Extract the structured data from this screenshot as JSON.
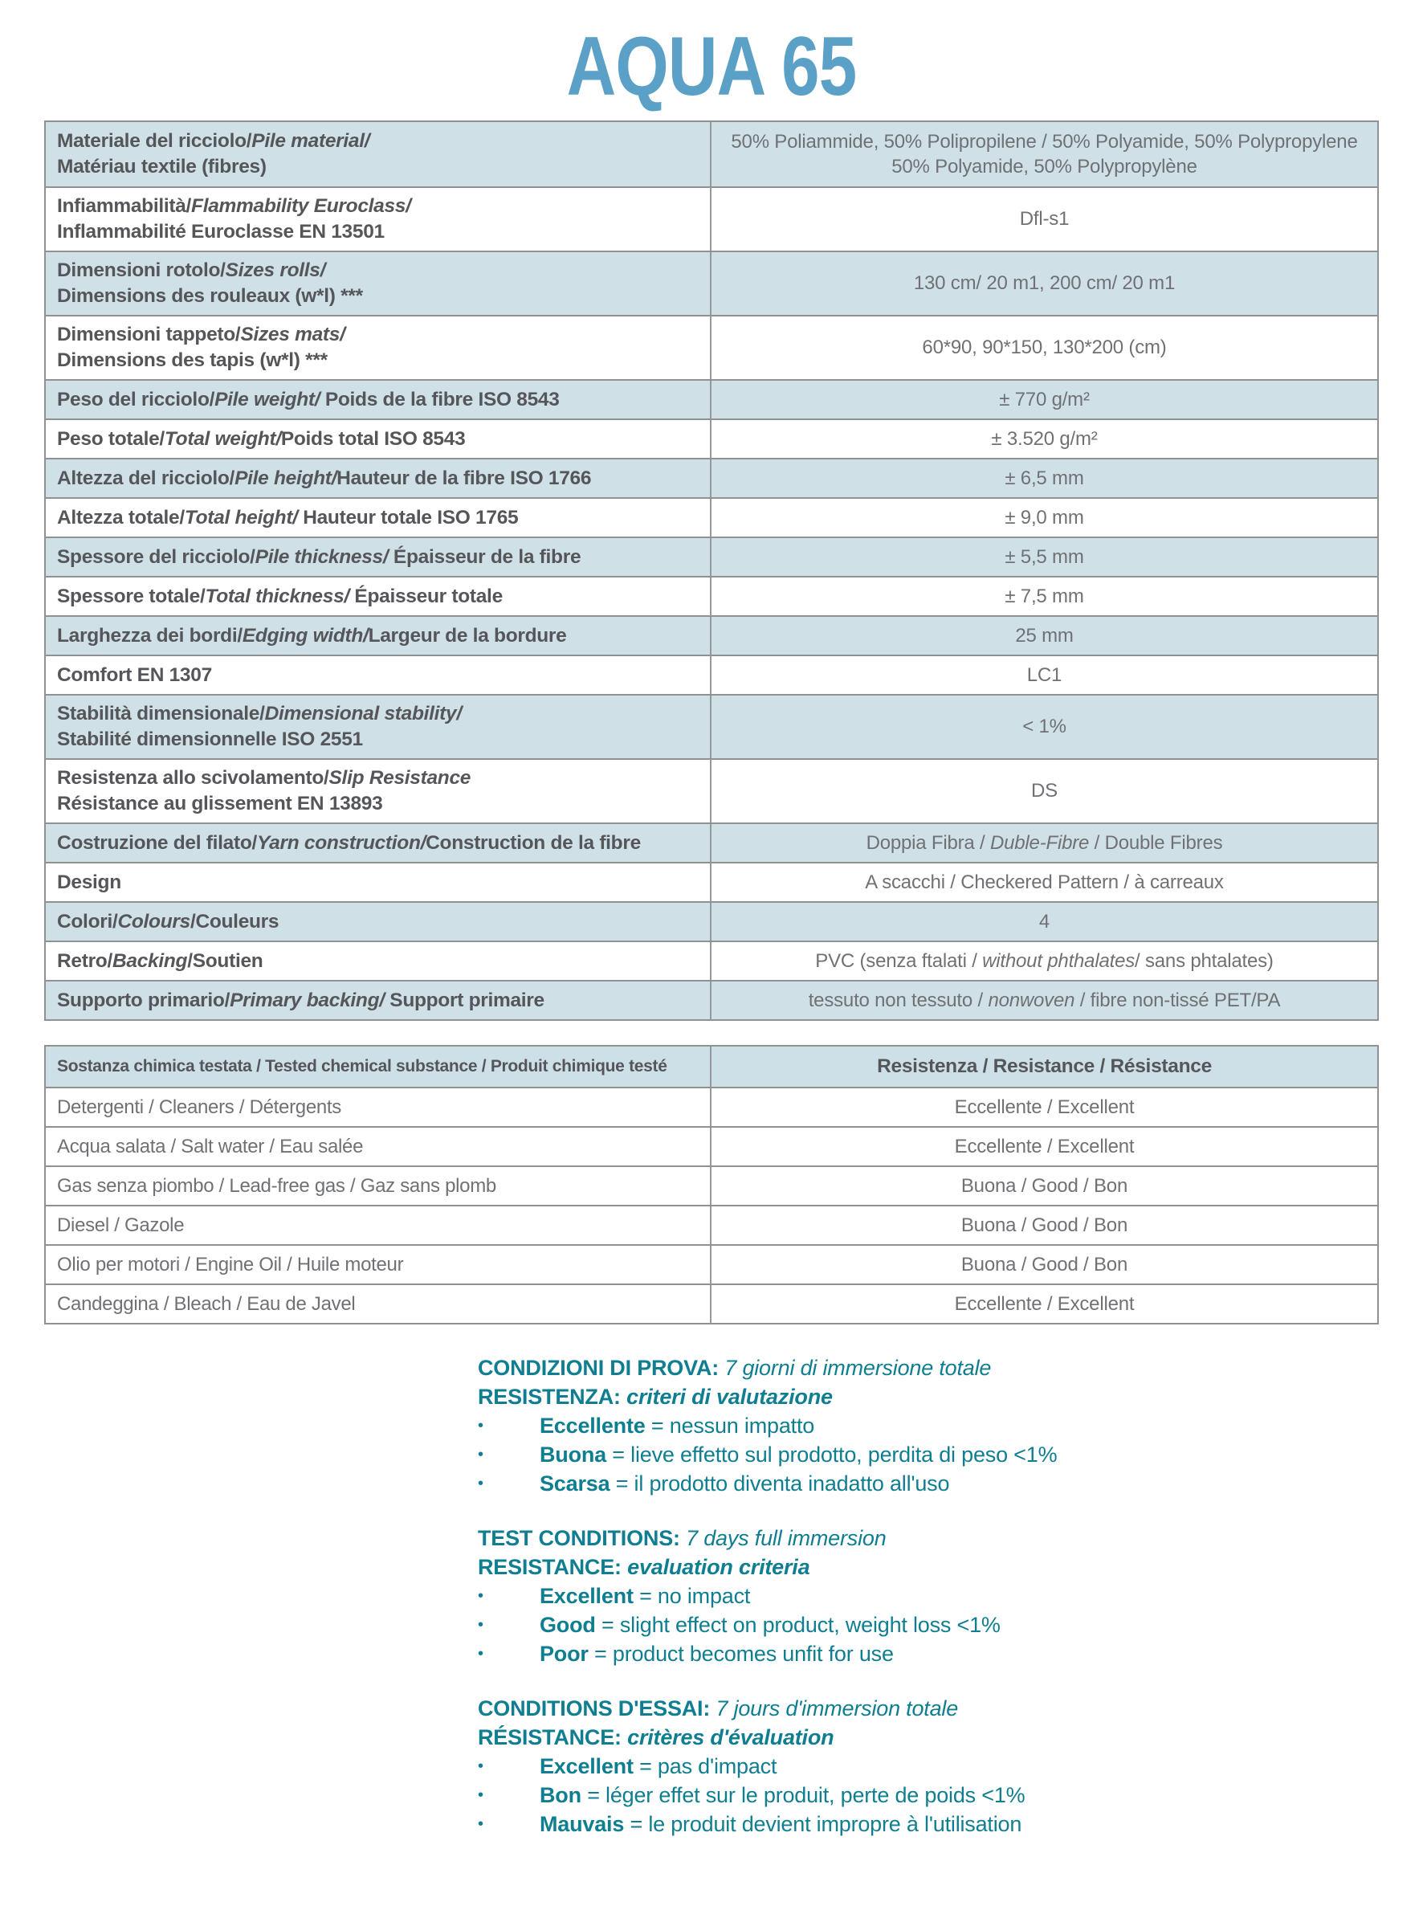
{
  "title": "AQUA 65",
  "colors": {
    "title_blue": "#5aa0c7",
    "row_blue": "#cfe0e7",
    "header_blue": "#cddfe7",
    "border_gray": "#8f9192",
    "label_gray": "#55565a",
    "value_gray": "#6f7174",
    "notes_teal": "#0f7e91"
  },
  "spec_table": {
    "rows": [
      {
        "label": [
          [
            {
              "t": "Materiale del ricciolo/",
              "s": "b"
            },
            {
              "t": "Pile material/",
              "s": "bi"
            }
          ],
          [
            {
              "t": "Matériau textile (fibres)",
              "s": "b"
            }
          ]
        ],
        "value": [
          [
            {
              "t": "50% Poliammide, 50% Polipropilene / 50% Polyamide, 50% Polypropylene",
              "s": ""
            }
          ],
          [
            {
              "t": "50% Polyamide, 50% Polypropylène",
              "s": ""
            }
          ]
        ]
      },
      {
        "label": [
          [
            {
              "t": "Infiammabilità/",
              "s": "b"
            },
            {
              "t": "Flammability Euroclass/",
              "s": "bi"
            }
          ],
          [
            {
              "t": "Inflammabilité Euroclasse EN 13501",
              "s": "b"
            }
          ]
        ],
        "value": [
          [
            {
              "t": "Dfl-s1",
              "s": ""
            }
          ]
        ]
      },
      {
        "label": [
          [
            {
              "t": "Dimensioni rotolo/",
              "s": "b"
            },
            {
              "t": "Sizes rolls/",
              "s": "bi"
            }
          ],
          [
            {
              "t": "Dimensions des rouleaux (w*l) ***",
              "s": "b"
            }
          ]
        ],
        "value": [
          [
            {
              "t": "130 cm/ 20 m1, 200 cm/ 20 m1",
              "s": ""
            }
          ]
        ]
      },
      {
        "label": [
          [
            {
              "t": "Dimensioni tappeto/",
              "s": "b"
            },
            {
              "t": "Sizes mats/",
              "s": "bi"
            }
          ],
          [
            {
              "t": "Dimensions des tapis (w*l) ***",
              "s": "b"
            }
          ]
        ],
        "value": [
          [
            {
              "t": "60*90, 90*150, 130*200 (cm)",
              "s": ""
            }
          ]
        ]
      },
      {
        "label": [
          [
            {
              "t": "Peso del ricciolo/",
              "s": "b"
            },
            {
              "t": "Pile weight/",
              "s": "bi"
            },
            {
              "t": " Poids de la fibre ISO 8543",
              "s": "b"
            }
          ]
        ],
        "value": [
          [
            {
              "t": "± 770 g/m²",
              "s": ""
            }
          ]
        ]
      },
      {
        "label": [
          [
            {
              "t": "Peso totale/",
              "s": "b"
            },
            {
              "t": "Total weight/",
              "s": "bi"
            },
            {
              "t": "Poids total ISO 8543",
              "s": "b"
            }
          ]
        ],
        "value": [
          [
            {
              "t": "± 3.520 g/m²",
              "s": ""
            }
          ]
        ]
      },
      {
        "label": [
          [
            {
              "t": "Altezza del ricciolo/",
              "s": "b"
            },
            {
              "t": "Pile height/",
              "s": "bi"
            },
            {
              "t": "Hauteur de la fibre ISO 1766",
              "s": "b"
            }
          ]
        ],
        "value": [
          [
            {
              "t": "± 6,5 mm",
              "s": ""
            }
          ]
        ]
      },
      {
        "label": [
          [
            {
              "t": "Altezza totale/",
              "s": "b"
            },
            {
              "t": "Total height/",
              "s": "bi"
            },
            {
              "t": " Hauteur totale ISO 1765",
              "s": "b"
            }
          ]
        ],
        "value": [
          [
            {
              "t": "± 9,0 mm",
              "s": ""
            }
          ]
        ]
      },
      {
        "label": [
          [
            {
              "t": "Spessore del ricciolo/",
              "s": "b"
            },
            {
              "t": "Pile thickness/",
              "s": "bi"
            },
            {
              "t": " Épaisseur de la fibre",
              "s": "b"
            }
          ]
        ],
        "value": [
          [
            {
              "t": "± 5,5 mm",
              "s": ""
            }
          ]
        ]
      },
      {
        "label": [
          [
            {
              "t": "Spessore totale/",
              "s": "b"
            },
            {
              "t": "Total thickness/",
              "s": "bi"
            },
            {
              "t": " Épaisseur totale",
              "s": "b"
            }
          ]
        ],
        "value": [
          [
            {
              "t": "± 7,5 mm",
              "s": ""
            }
          ]
        ]
      },
      {
        "label": [
          [
            {
              "t": "Larghezza dei bordi/",
              "s": "b"
            },
            {
              "t": "Edging width/",
              "s": "bi"
            },
            {
              "t": "Largeur de la bordure",
              "s": "b"
            }
          ]
        ],
        "value": [
          [
            {
              "t": "25 mm",
              "s": ""
            }
          ]
        ]
      },
      {
        "label": [
          [
            {
              "t": "Comfort EN 1307",
              "s": "b"
            }
          ]
        ],
        "value": [
          [
            {
              "t": "LC1",
              "s": ""
            }
          ]
        ]
      },
      {
        "label": [
          [
            {
              "t": "Stabilità dimensionale/",
              "s": "b"
            },
            {
              "t": "Dimensional stability/",
              "s": "bi"
            }
          ],
          [
            {
              "t": "Stabilité dimensionnelle ISO 2551",
              "s": "b"
            }
          ]
        ],
        "value": [
          [
            {
              "t": "< 1%",
              "s": ""
            }
          ]
        ]
      },
      {
        "label": [
          [
            {
              "t": "Resistenza allo scivolamento/",
              "s": "b"
            },
            {
              "t": "Slip Resistance",
              "s": "bi"
            }
          ],
          [
            {
              "t": "Résistance au glissement EN 13893",
              "s": "b"
            }
          ]
        ],
        "value": [
          [
            {
              "t": "DS",
              "s": ""
            }
          ]
        ]
      },
      {
        "label": [
          [
            {
              "t": "Costruzione del filato/",
              "s": "b"
            },
            {
              "t": "Yarn construction/",
              "s": "bi"
            },
            {
              "t": "Construction de la fibre",
              "s": "b"
            }
          ]
        ],
        "value": [
          [
            {
              "t": "Doppia Fibra / ",
              "s": ""
            },
            {
              "t": "Duble-Fibre",
              "s": "i"
            },
            {
              "t": " / Double Fibres",
              "s": ""
            }
          ]
        ]
      },
      {
        "label": [
          [
            {
              "t": "Design",
              "s": "b"
            }
          ]
        ],
        "value": [
          [
            {
              "t": "A scacchi / Checkered Pattern / à carreaux",
              "s": ""
            }
          ]
        ]
      },
      {
        "label": [
          [
            {
              "t": "Colori/",
              "s": "b"
            },
            {
              "t": "Colours",
              "s": "bi"
            },
            {
              "t": "/Couleurs",
              "s": "b"
            }
          ]
        ],
        "value": [
          [
            {
              "t": "4",
              "s": ""
            }
          ]
        ]
      },
      {
        "label": [
          [
            {
              "t": "Retro/",
              "s": "b"
            },
            {
              "t": "Backing",
              "s": "bi"
            },
            {
              "t": "/Soutien",
              "s": "b"
            }
          ]
        ],
        "value": [
          [
            {
              "t": "PVC (senza ftalati / ",
              "s": ""
            },
            {
              "t": "without phthalates",
              "s": "i"
            },
            {
              "t": "/ sans phtalates)",
              "s": ""
            }
          ]
        ]
      },
      {
        "label": [
          [
            {
              "t": "Supporto primario/",
              "s": "b"
            },
            {
              "t": "Primary backing/",
              "s": "bi"
            },
            {
              "t": " Support primaire",
              "s": "b"
            }
          ]
        ],
        "value": [
          [
            {
              "t": "tessuto non tessuto / ",
              "s": ""
            },
            {
              "t": "nonwoven",
              "s": "i"
            },
            {
              "t": " /  fibre non-tissé PET/PA",
              "s": ""
            }
          ]
        ]
      }
    ]
  },
  "chem_table": {
    "header": {
      "substance": "Sostanza chimica testata / Tested chemical substance / Produit chimique testé",
      "resistance": "Resistenza / Resistance / Résistance"
    },
    "rows": [
      {
        "substance": "Detergenti / Cleaners / Détergents",
        "resistance": "Eccellente / Excellent"
      },
      {
        "substance": "Acqua salata / Salt water / Eau salée",
        "resistance": "Eccellente / Excellent"
      },
      {
        "substance": "Gas senza piombo / Lead-free gas / Gaz sans plomb",
        "resistance": "Buona / Good / Bon"
      },
      {
        "substance": "Diesel / Gazole",
        "resistance": "Buona / Good / Bon"
      },
      {
        "substance": "Olio per motori / Engine Oil / Huile moteur",
        "resistance": "Buona / Good / Bon"
      },
      {
        "substance": "Candeggina / Bleach / Eau de Javel",
        "resistance": "Eccellente / Excellent"
      }
    ]
  },
  "notes": {
    "bullet_char": "•",
    "blocks": [
      {
        "heading": [
          {
            "t": "CONDIZIONI DI PROVA:",
            "s": "b"
          },
          {
            "t": " ",
            "s": ""
          },
          {
            "t": "7 giorni di immersione totale",
            "s": "i"
          }
        ],
        "sub": [
          {
            "t": "RESISTENZA",
            "s": "b"
          },
          {
            "t": ": ",
            "s": "b"
          },
          {
            "t": "criteri di valutazione",
            "s": "bi"
          }
        ],
        "items": [
          [
            {
              "t": "Eccellente",
              "s": "b"
            },
            {
              "t": " = nessun impatto",
              "s": ""
            }
          ],
          [
            {
              "t": "Buona",
              "s": "b"
            },
            {
              "t": " = lieve effetto sul prodotto, perdita di peso <1%",
              "s": ""
            }
          ],
          [
            {
              "t": "Scarsa",
              "s": "b"
            },
            {
              "t": " = il prodotto diventa inadatto all'uso",
              "s": ""
            }
          ]
        ]
      },
      {
        "heading": [
          {
            "t": "TEST CONDITIONS:",
            "s": "b"
          },
          {
            "t": " ",
            "s": ""
          },
          {
            "t": "7 days full immersion",
            "s": "i"
          }
        ],
        "sub": [
          {
            "t": "RESISTANCE",
            "s": "b"
          },
          {
            "t": ": ",
            "s": "b"
          },
          {
            "t": "evaluation criteria",
            "s": "bi"
          }
        ],
        "items": [
          [
            {
              "t": "Excellent",
              "s": "b"
            },
            {
              "t": " = no impact",
              "s": ""
            }
          ],
          [
            {
              "t": "Good",
              "s": "b"
            },
            {
              "t": " = slight effect on product, weight loss <1%",
              "s": ""
            }
          ],
          [
            {
              "t": "Poor",
              "s": "b"
            },
            {
              "t": " = product becomes unfit for use",
              "s": ""
            }
          ]
        ]
      },
      {
        "heading": [
          {
            "t": "CONDITIONS D'ESSAI:",
            "s": "b"
          },
          {
            "t": " ",
            "s": ""
          },
          {
            "t": "7 jours d'immersion totale",
            "s": "i"
          }
        ],
        "sub": [
          {
            "t": "RÉSISTANCE",
            "s": "b"
          },
          {
            "t": ": ",
            "s": "b"
          },
          {
            "t": "critères d'évaluation",
            "s": "bi"
          }
        ],
        "items": [
          [
            {
              "t": "Excellent",
              "s": "b"
            },
            {
              "t": " = pas d'impact",
              "s": ""
            }
          ],
          [
            {
              "t": "Bon",
              "s": "b"
            },
            {
              "t": " = léger effet sur le produit, perte de poids <1%",
              "s": ""
            }
          ],
          [
            {
              "t": "Mauvais",
              "s": "b"
            },
            {
              "t": " = le produit devient impropre à l'utilisation",
              "s": ""
            }
          ]
        ]
      }
    ]
  }
}
